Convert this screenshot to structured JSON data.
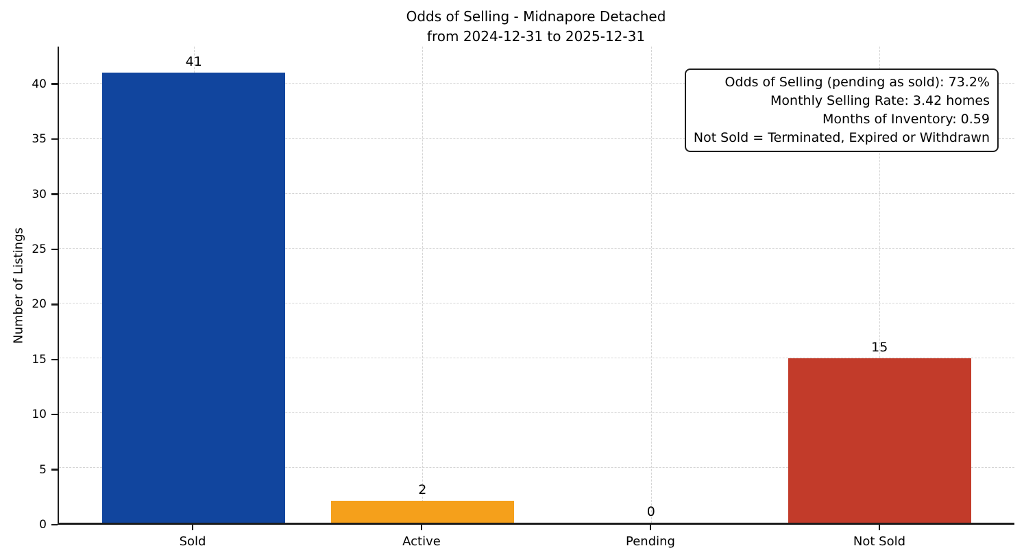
{
  "chart_data": {
    "type": "bar",
    "title": "Odds of Selling - Midnapore Detached from 2024-12-31 to 2025-12-31",
    "title_lines": [
      "Odds of Selling - Midnapore Detached",
      "from 2024-12-31 to 2025-12-31"
    ],
    "xlabel": "",
    "ylabel": "Number of Listings",
    "categories": [
      "Sold",
      "Active",
      "Pending",
      "Not Sold"
    ],
    "values": [
      41,
      2,
      0,
      15
    ],
    "value_labels": [
      "41",
      "2",
      "0",
      "15"
    ],
    "bar_colors": [
      "#11459e",
      "#f5a01b",
      "#999999",
      "#c23b2a"
    ],
    "yticks": [
      0,
      5,
      10,
      15,
      20,
      25,
      30,
      35,
      40
    ],
    "ylim": [
      0,
      43.4
    ],
    "xlim": [
      -0.59,
      3.59
    ],
    "bar_width": 0.8,
    "grid": "dashed light-gray horizontal lines at yticks and vertical lines at category centers",
    "legend": "none",
    "background": "#ffffff",
    "axis_color": "#1c1c1c",
    "grid_color": "#d4d4d4",
    "annotation_box": {
      "position": "top-right",
      "text_align": "right",
      "border_color": "#1c1c1c",
      "background": "#ffffff",
      "lines": [
        "Odds of Selling (pending as sold): 73.2%",
        "Monthly Selling Rate: 3.42 homes",
        "Months of Inventory: 0.59",
        "Not Sold = Terminated, Expired or Withdrawn"
      ]
    }
  }
}
